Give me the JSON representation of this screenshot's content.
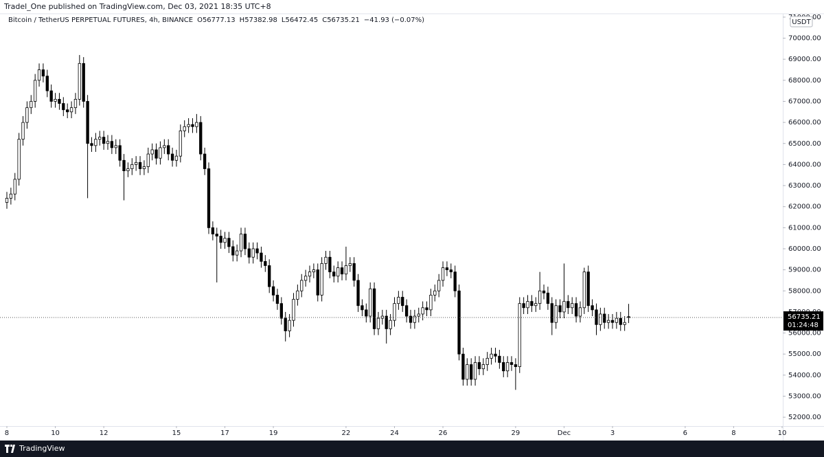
{
  "header": {
    "published": "Tradel_One published on TradingView.com, Dec 03, 2021 18:35 UTC+8"
  },
  "footer": {
    "brand": "TradingView"
  },
  "chart_data": {
    "type": "candlestick",
    "title": "Bitcoin / TetherUS PERPETUAL FUTURES, 4h, BINANCE",
    "ohlc_prefixes": [
      "O",
      "H",
      "L",
      "C"
    ],
    "change_label": "−41.93 (−0.07%)",
    "currency": "USDT",
    "countdown": "01:24:48",
    "up_color": "#ffffff",
    "down_color": "#000000",
    "wick_color": "#000000",
    "grid": false,
    "xlim": [
      -6.8,
      768.7
    ],
    "ylim": [
      51580,
      71160
    ],
    "xticks": [
      {
        "value": 0,
        "label": "8"
      },
      {
        "value": 48,
        "label": "10"
      },
      {
        "value": 96,
        "label": "12"
      },
      {
        "value": 168,
        "label": "15"
      },
      {
        "value": 216,
        "label": "17"
      },
      {
        "value": 264,
        "label": "19"
      },
      {
        "value": 336,
        "label": "22"
      },
      {
        "value": 384,
        "label": "24"
      },
      {
        "value": 432,
        "label": "26"
      },
      {
        "value": 504,
        "label": "29"
      },
      {
        "value": 552,
        "label": "Dec"
      },
      {
        "value": 600,
        "label": "3"
      },
      {
        "value": 672,
        "label": "6"
      },
      {
        "value": 720,
        "label": "8"
      },
      {
        "value": 768,
        "label": "10"
      }
    ],
    "yticks": [
      {
        "value": 52000,
        "label": "52000.00"
      },
      {
        "value": 53000,
        "label": "53000.00"
      },
      {
        "value": 54000,
        "label": "54000.00"
      },
      {
        "value": 55000,
        "label": "55000.00"
      },
      {
        "value": 56000,
        "label": "56000.00"
      },
      {
        "value": 57000,
        "label": "57000.00"
      },
      {
        "value": 58000,
        "label": "58000.00"
      },
      {
        "value": 59000,
        "label": "59000.00"
      },
      {
        "value": 60000,
        "label": "60000.00"
      },
      {
        "value": 61000,
        "label": "61000.00"
      },
      {
        "value": 62000,
        "label": "62000.00"
      },
      {
        "value": 63000,
        "label": "63000.00"
      },
      {
        "value": 64000,
        "label": "64000.00"
      },
      {
        "value": 65000,
        "label": "65000.00"
      },
      {
        "value": 66000,
        "label": "66000.00"
      },
      {
        "value": 67000,
        "label": "67000.00"
      },
      {
        "value": 68000,
        "label": "68000.00"
      },
      {
        "value": 69000,
        "label": "69000.00"
      },
      {
        "value": 70000,
        "label": "70000.00"
      },
      {
        "value": 71000,
        "label": "71000.00"
      }
    ],
    "x": [
      0,
      4,
      8,
      12,
      16,
      20,
      24,
      28,
      32,
      36,
      40,
      44,
      48,
      52,
      56,
      60,
      64,
      68,
      72,
      76,
      80,
      84,
      88,
      92,
      96,
      100,
      104,
      108,
      112,
      116,
      120,
      124,
      128,
      132,
      136,
      140,
      144,
      148,
      152,
      156,
      160,
      164,
      168,
      172,
      176,
      180,
      184,
      188,
      192,
      196,
      200,
      204,
      208,
      212,
      216,
      220,
      224,
      228,
      232,
      236,
      240,
      244,
      248,
      252,
      256,
      260,
      264,
      268,
      272,
      276,
      280,
      284,
      288,
      292,
      296,
      300,
      304,
      308,
      312,
      316,
      320,
      324,
      328,
      332,
      336,
      340,
      344,
      348,
      352,
      356,
      360,
      364,
      368,
      372,
      376,
      380,
      384,
      388,
      392,
      396,
      400,
      404,
      408,
      412,
      416,
      420,
      424,
      428,
      432,
      436,
      440,
      444,
      448,
      452,
      456,
      460,
      464,
      468,
      472,
      476,
      480,
      484,
      488,
      492,
      496,
      500,
      504,
      508,
      512,
      516,
      520,
      524,
      528,
      532,
      536,
      540,
      544,
      548,
      552,
      556,
      560,
      564,
      568,
      572,
      576,
      580,
      584,
      588,
      592,
      596,
      600,
      604,
      608,
      612,
      616
    ],
    "open": [
      62200,
      62400,
      62600,
      63300,
      65200,
      66000,
      66700,
      67000,
      68000,
      68500,
      68200,
      67500,
      67000,
      67100,
      66900,
      66600,
      66500,
      66700,
      67100,
      68800,
      67000,
      65000,
      64900,
      65200,
      65300,
      65000,
      65100,
      64800,
      64900,
      64200,
      63700,
      63800,
      64000,
      64100,
      63800,
      63900,
      64500,
      64700,
      64300,
      64800,
      64900,
      64500,
      64200,
      64400,
      65600,
      65800,
      65900,
      65800,
      66000,
      64500,
      63800,
      61000,
      60700,
      60600,
      60300,
      60500,
      60100,
      59700,
      59900,
      60700,
      60000,
      59600,
      60000,
      59800,
      59400,
      59200,
      58200,
      57800,
      57400,
      56700,
      56100,
      56600,
      57600,
      58000,
      58500,
      58700,
      58900,
      59000,
      57800,
      59300,
      59600,
      58900,
      58700,
      59100,
      58800,
      59200,
      59300,
      58500,
      57300,
      57100,
      56800,
      58100,
      56200,
      56700,
      56800,
      56200,
      56600,
      57400,
      57700,
      57300,
      56800,
      56500,
      56800,
      56900,
      57200,
      57100,
      57800,
      58000,
      58500,
      59100,
      59000,
      58900,
      58000,
      55000,
      53800,
      54500,
      53800,
      54600,
      54300,
      54500,
      54800,
      55000,
      54900,
      54600,
      54200,
      54600,
      54500,
      54400,
      57400,
      57200,
      57500,
      57300,
      57400,
      58000,
      57900,
      57400,
      56500,
      57300,
      57000,
      57500,
      57200,
      57400,
      56800,
      57200,
      58900,
      57300,
      57100,
      56400,
      56900,
      56500,
      56600,
      56500,
      56700,
      56400,
      56777.13
    ],
    "high": [
      62700,
      62900,
      63600,
      65500,
      66300,
      67000,
      67300,
      68300,
      68800,
      68800,
      68500,
      67800,
      67400,
      67400,
      67200,
      66900,
      67000,
      67400,
      69200,
      69100,
      67300,
      65300,
      65500,
      65600,
      65600,
      65400,
      65400,
      65200,
      65200,
      64500,
      64100,
      64300,
      64400,
      64400,
      64200,
      64800,
      65000,
      65000,
      65100,
      65200,
      65200,
      64800,
      64700,
      65900,
      66100,
      66200,
      66200,
      66400,
      66300,
      64800,
      64100,
      61300,
      61000,
      60900,
      60800,
      60800,
      60400,
      60200,
      61000,
      61000,
      60300,
      60300,
      60300,
      60100,
      59700,
      59500,
      58500,
      58100,
      57700,
      57000,
      56900,
      57900,
      58300,
      58800,
      59000,
      59200,
      59300,
      59300,
      59600,
      59900,
      59900,
      59200,
      59400,
      59400,
      60100,
      59600,
      59600,
      58800,
      57600,
      57400,
      58400,
      58400,
      57000,
      57100,
      57100,
      56900,
      57700,
      58000,
      58000,
      57600,
      57100,
      57100,
      57200,
      57500,
      57500,
      58100,
      58300,
      58800,
      59400,
      59400,
      59300,
      59200,
      58300,
      55300,
      54800,
      54800,
      54900,
      54900,
      54800,
      55100,
      55300,
      55300,
      55200,
      54900,
      54900,
      54900,
      54800,
      57700,
      57700,
      57800,
      57800,
      57700,
      58900,
      58300,
      58200,
      57700,
      57600,
      57600,
      59300,
      57800,
      57700,
      57700,
      57500,
      59100,
      59200,
      57600,
      57400,
      57200,
      57200,
      56900,
      56900,
      57000,
      57000,
      56800,
      57382.98
    ],
    "low": [
      61900,
      62100,
      62300,
      63000,
      64900,
      65700,
      66400,
      66700,
      67700,
      67900,
      67200,
      66700,
      66700,
      66600,
      66300,
      66200,
      66200,
      66400,
      66800,
      66700,
      62400,
      64600,
      64600,
      64900,
      64700,
      64700,
      64500,
      64500,
      63900,
      62300,
      63400,
      63500,
      63700,
      63500,
      63500,
      63600,
      64200,
      64000,
      64000,
      64500,
      64200,
      63900,
      63900,
      64100,
      65300,
      65500,
      65500,
      65500,
      64200,
      63500,
      60700,
      60400,
      58400,
      60000,
      60000,
      59800,
      59400,
      59400,
      59600,
      59700,
      59300,
      59300,
      59500,
      59100,
      58900,
      57900,
      57500,
      57100,
      56400,
      55600,
      55800,
      56300,
      57300,
      57700,
      58200,
      58400,
      58600,
      57500,
      57500,
      59000,
      58600,
      58400,
      58400,
      58500,
      58500,
      58900,
      58200,
      57000,
      56800,
      56500,
      56500,
      55900,
      55900,
      56400,
      55500,
      55900,
      56300,
      57100,
      57000,
      56500,
      56200,
      56200,
      56500,
      56600,
      56800,
      56800,
      57500,
      57700,
      58200,
      58700,
      58600,
      57700,
      54700,
      53500,
      53500,
      53500,
      53500,
      54000,
      54000,
      54200,
      54500,
      54600,
      54300,
      53900,
      53900,
      54200,
      53300,
      54100,
      56900,
      56900,
      57000,
      57000,
      57100,
      57600,
      57100,
      55900,
      56200,
      56700,
      56700,
      56900,
      56900,
      56500,
      56500,
      56900,
      57000,
      56800,
      55900,
      56100,
      56200,
      56200,
      56200,
      56200,
      56100,
      56100,
      56472.45
    ],
    "close": [
      62400,
      62600,
      63300,
      65200,
      66000,
      66700,
      67000,
      68000,
      68500,
      68200,
      67500,
      67000,
      67100,
      66900,
      66600,
      66500,
      66700,
      67100,
      68800,
      67000,
      65000,
      64900,
      65200,
      65300,
      65000,
      65100,
      64800,
      64900,
      64200,
      63700,
      63800,
      64000,
      64100,
      63800,
      63900,
      64500,
      64700,
      64300,
      64800,
      64900,
      64500,
      64200,
      64400,
      65600,
      65800,
      65900,
      65800,
      66000,
      64500,
      63800,
      61000,
      60700,
      60600,
      60300,
      60500,
      60100,
      59700,
      59900,
      60700,
      60000,
      59600,
      60000,
      59800,
      59400,
      59200,
      58200,
      57800,
      57400,
      56700,
      56100,
      56600,
      57600,
      58000,
      58500,
      58700,
      58900,
      59000,
      57800,
      59300,
      59600,
      58900,
      58700,
      59100,
      58800,
      59200,
      59300,
      58500,
      57300,
      57100,
      56800,
      58100,
      56200,
      56700,
      56800,
      56200,
      56600,
      57400,
      57700,
      57300,
      56800,
      56500,
      56800,
      56900,
      57200,
      57100,
      57800,
      58000,
      58500,
      59100,
      59000,
      58900,
      58000,
      55000,
      53800,
      54500,
      53800,
      54600,
      54300,
      54500,
      54800,
      55000,
      54900,
      54600,
      54200,
      54600,
      54500,
      54400,
      57400,
      57200,
      57500,
      57300,
      57400,
      58000,
      57900,
      57400,
      56500,
      57300,
      57000,
      57500,
      57200,
      57400,
      56800,
      57200,
      58900,
      57300,
      57100,
      56400,
      56900,
      56500,
      56600,
      56500,
      56700,
      56400,
      56500,
      56735.21
    ]
  }
}
